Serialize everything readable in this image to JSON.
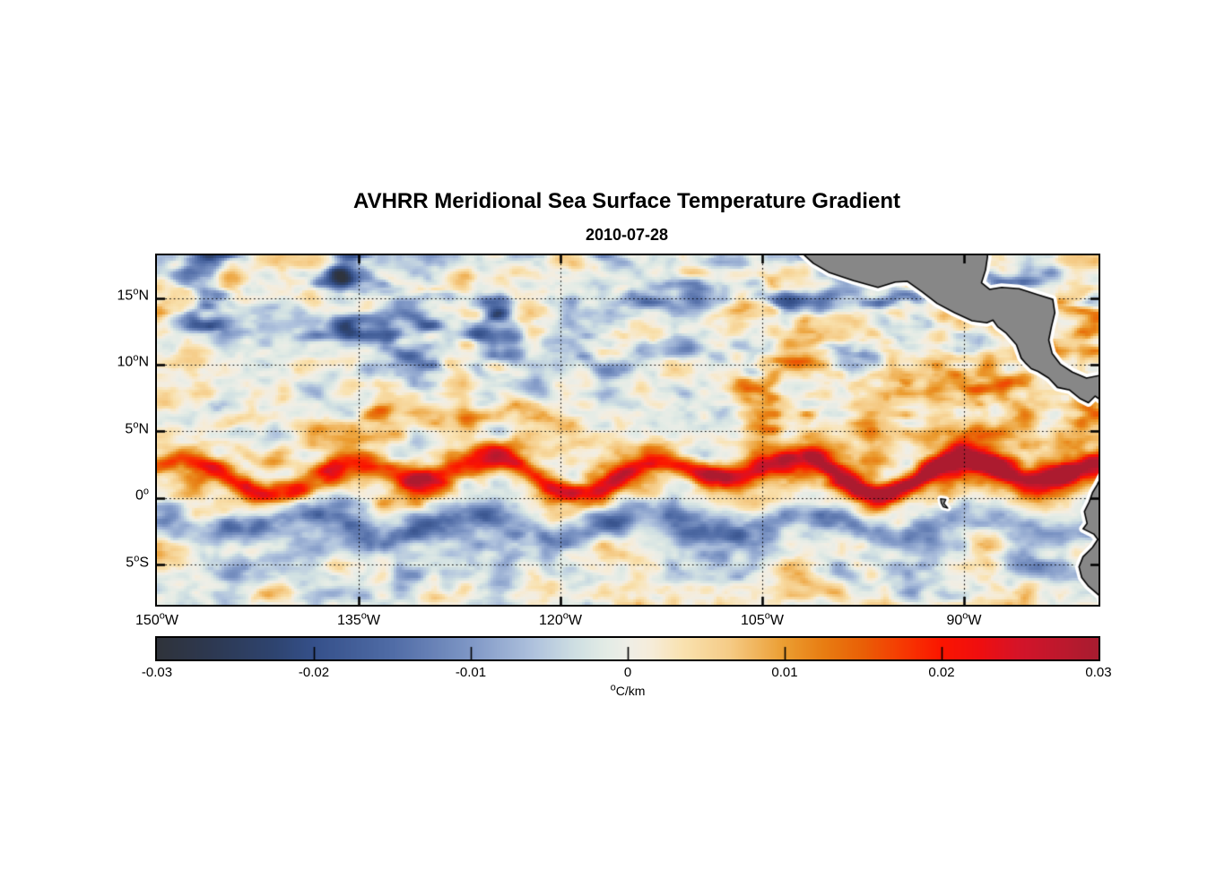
{
  "figure": {
    "title": "AVHRR Meridional Sea Surface Temperature Gradient",
    "subtitle": "2010-07-28",
    "background_color": "#ffffff",
    "degree_glyph": "o"
  },
  "chart_data": {
    "type": "heatmap",
    "title": "AVHRR Meridional Sea Surface Temperature Gradient",
    "date": "2010-07-28",
    "variable": "meridional sea surface temperature gradient",
    "units_label": "C/km",
    "x_axis": {
      "range_lon": [
        -150,
        -80
      ],
      "ticks": [
        {
          "num": "150",
          "dir": "W",
          "lon": -150
        },
        {
          "num": "135",
          "dir": "W",
          "lon": -135
        },
        {
          "num": "120",
          "dir": "W",
          "lon": -120
        },
        {
          "num": "105",
          "dir": "W",
          "lon": -105
        },
        {
          "num": "90",
          "dir": "W",
          "lon": -90
        }
      ]
    },
    "y_axis": {
      "range_lat": [
        -8,
        18.2
      ],
      "ticks": [
        {
          "num": "15",
          "dir": "N",
          "lat": 15
        },
        {
          "num": "10",
          "dir": "N",
          "lat": 10
        },
        {
          "num": "5",
          "dir": "N",
          "lat": 5
        },
        {
          "num": "0",
          "dir": "",
          "lat": 0
        },
        {
          "num": "5",
          "dir": "S",
          "lat": -5
        }
      ]
    },
    "grid": {
      "lat_lines": [
        15,
        10,
        5,
        0,
        -5
      ],
      "lon_lines": [
        -135,
        -120,
        -105,
        -90
      ],
      "style": "dotted",
      "color": "#000000"
    },
    "colorbar": {
      "range": [
        -0.03,
        0.03
      ],
      "tick_values": [
        -0.03,
        -0.02,
        -0.01,
        0,
        0.01,
        0.02,
        0.03
      ],
      "tick_labels": [
        "-0.03",
        "-0.02",
        "-0.01",
        "0",
        "0.01",
        "0.02",
        "0.03"
      ],
      "unit_suffix": "C/km",
      "stops": [
        [
          0.0,
          "#2f333b"
        ],
        [
          0.055,
          "#2d3850"
        ],
        [
          0.125,
          "#2e4470"
        ],
        [
          0.1667,
          "#35508a"
        ],
        [
          0.25,
          "#506ca6"
        ],
        [
          0.3333,
          "#7f97c6"
        ],
        [
          0.4,
          "#afc2dd"
        ],
        [
          0.445,
          "#cfdfe2"
        ],
        [
          0.475,
          "#e2ebe5"
        ],
        [
          0.5,
          "#efeee7"
        ],
        [
          0.525,
          "#f6ecd9"
        ],
        [
          0.5583,
          "#f9e2b0"
        ],
        [
          0.6083,
          "#f5cb86"
        ],
        [
          0.6667,
          "#eb9d31"
        ],
        [
          0.7083,
          "#e87d12"
        ],
        [
          0.75,
          "#e95f06"
        ],
        [
          0.7917,
          "#f63a02"
        ],
        [
          0.8333,
          "#fb1500"
        ],
        [
          0.875,
          "#ef0e10"
        ],
        [
          0.9167,
          "#d41429"
        ],
        [
          1.0,
          "#a81c30"
        ]
      ]
    },
    "land": {
      "fill": "#878787",
      "outline": "#000000",
      "coastal_gap_color": "#ffffff",
      "polygons": {
        "central_america": [
          [
            -102.4,
            18.7
          ],
          [
            -101.2,
            17.6
          ],
          [
            -100.0,
            16.9
          ],
          [
            -98.2,
            16.3
          ],
          [
            -96.4,
            15.8
          ],
          [
            -95.1,
            16.2
          ],
          [
            -94.2,
            16.25
          ],
          [
            -93.1,
            15.45
          ],
          [
            -92.0,
            14.6
          ],
          [
            -90.7,
            13.9
          ],
          [
            -89.4,
            13.3
          ],
          [
            -88.3,
            13.15
          ],
          [
            -87.85,
            13.35
          ],
          [
            -87.5,
            12.85
          ],
          [
            -86.9,
            12.4
          ],
          [
            -86.1,
            11.5
          ],
          [
            -85.75,
            10.5
          ],
          [
            -85.45,
            10.15
          ],
          [
            -85.0,
            9.7
          ],
          [
            -84.5,
            9.5
          ],
          [
            -83.7,
            9.0
          ],
          [
            -83.05,
            8.3
          ],
          [
            -82.15,
            8.1
          ],
          [
            -81.35,
            7.45
          ],
          [
            -80.75,
            7.15
          ],
          [
            -80.25,
            7.65
          ],
          [
            -79.7,
            7.25
          ],
          [
            -79.0,
            8.3
          ],
          [
            -78.9,
            9.4
          ],
          [
            -79.9,
            9.2
          ],
          [
            -80.9,
            9.0
          ],
          [
            -81.95,
            9.45
          ],
          [
            -82.85,
            10.05
          ],
          [
            -83.45,
            10.85
          ],
          [
            -83.7,
            11.85
          ],
          [
            -83.5,
            12.85
          ],
          [
            -83.25,
            13.9
          ],
          [
            -83.4,
            14.9
          ],
          [
            -84.5,
            15.25
          ],
          [
            -85.9,
            15.7
          ],
          [
            -87.2,
            15.8
          ],
          [
            -88.1,
            15.65
          ],
          [
            -88.7,
            16.15
          ],
          [
            -88.4,
            17.1
          ],
          [
            -88.25,
            18.1
          ],
          [
            -88.35,
            19.2
          ],
          [
            -102.4,
            19.2
          ]
        ],
        "south_america": [
          [
            -79.6,
            2.0
          ],
          [
            -80.1,
            1.0
          ],
          [
            -80.45,
            0.4
          ],
          [
            -80.7,
            -0.3
          ],
          [
            -81.05,
            -1.0
          ],
          [
            -80.85,
            -1.9
          ],
          [
            -81.15,
            -2.3
          ],
          [
            -80.35,
            -2.7
          ],
          [
            -80.05,
            -3.1
          ],
          [
            -80.45,
            -3.7
          ],
          [
            -81.15,
            -4.4
          ],
          [
            -81.45,
            -5.15
          ],
          [
            -81.25,
            -5.95
          ],
          [
            -80.75,
            -6.6
          ],
          [
            -79.95,
            -7.3
          ],
          [
            -79.4,
            -8.4
          ],
          [
            -78.9,
            -9.0
          ],
          [
            -77.0,
            -9.0
          ],
          [
            -77.0,
            2.0
          ]
        ],
        "galapagos": [
          [
            -91.75,
            -0.05
          ],
          [
            -91.35,
            -0.1
          ],
          [
            -91.5,
            -0.4
          ],
          [
            -91.2,
            -0.75
          ],
          [
            -91.55,
            -0.65
          ],
          [
            -91.7,
            -0.35
          ]
        ]
      }
    },
    "field": {
      "seed": 20100728,
      "noise_amp": 0.0105,
      "equatorial_front": {
        "base_lat": 1.85,
        "amp_west": 0.0205,
        "amp_east_boost": 0.0125,
        "width": 0.8
      },
      "secondary_front": {
        "lat": 6.15,
        "amp": 0.0135,
        "width": 0.85,
        "fades_east_of": -122
      },
      "south_cold_band": {
        "lat": -2.0,
        "amp": -0.0125,
        "width": 1.15
      },
      "north_cold_patches": {
        "amp": -0.0115,
        "lat_min": 8
      },
      "northeast_warm_mottle": {
        "amp": 0.0095,
        "lon_min": -114,
        "lat_range": [
          3.5,
          15.5
        ]
      }
    }
  }
}
